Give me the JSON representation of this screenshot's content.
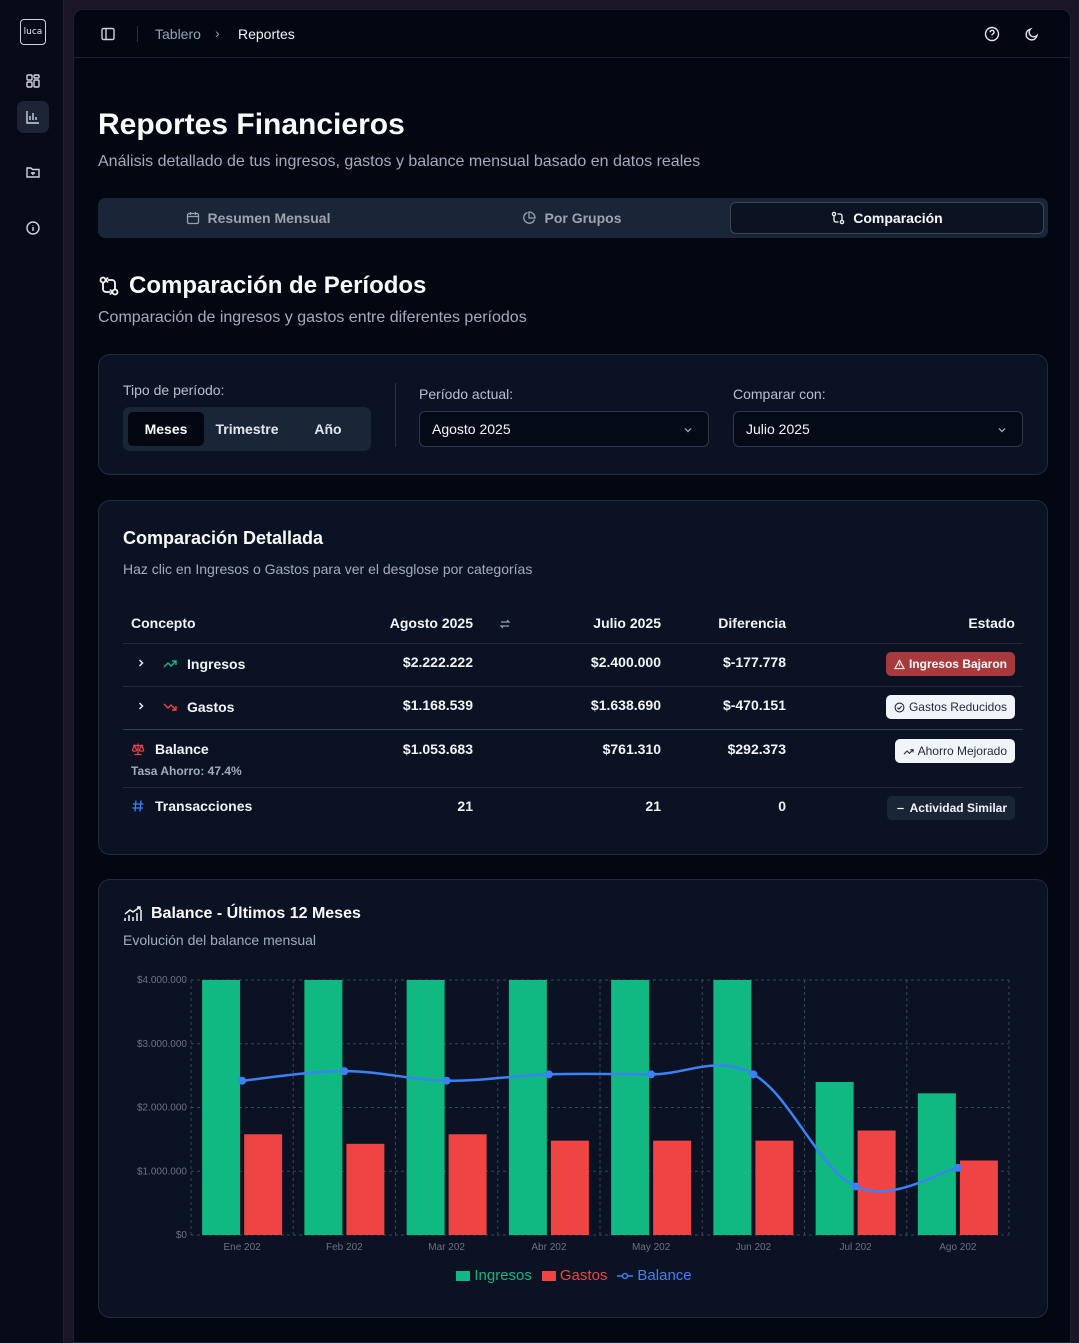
{
  "sidebar": {
    "logo": "luca",
    "items": [
      {
        "icon": "dashboard-icon"
      },
      {
        "icon": "bar-chart-icon",
        "active": true
      },
      {
        "icon": "folder-icon"
      },
      {
        "icon": "info-icon"
      }
    ]
  },
  "topbar": {
    "breadcrumb": [
      "Tablero",
      "Reportes"
    ],
    "separator": "›"
  },
  "page": {
    "title": "Reportes Financieros",
    "subtitle": "Análisis detallado de tus ingresos, gastos y balance mensual basado en datos reales"
  },
  "tabs": [
    {
      "label": "Resumen Mensual",
      "icon": "calendar-icon"
    },
    {
      "label": "Por Grupos",
      "icon": "pie-chart-icon"
    },
    {
      "label": "Comparación",
      "icon": "git-compare-icon",
      "selected": true
    }
  ],
  "section": {
    "title": "Comparación de Períodos",
    "subtitle": "Comparación de ingresos y gastos entre diferentes períodos"
  },
  "filters": {
    "period_type_label": "Tipo de período:",
    "period_options": [
      "Meses",
      "Trimestre",
      "Año"
    ],
    "period_selected": "Meses",
    "current_label": "Período actual:",
    "current_value": "Agosto 2025",
    "compare_label": "Comparar con:",
    "compare_value": "Julio 2025"
  },
  "comparison": {
    "title": "Comparación Detallada",
    "subtitle": "Haz clic en Ingresos o Gastos para ver el desglose por categorías",
    "headers": {
      "concept": "Concepto",
      "current": "Agosto 2025",
      "previous": "Julio 2025",
      "diff": "Diferencia",
      "status": "Estado"
    },
    "rows": [
      {
        "concept": "Ingresos",
        "current": "$2.222.222",
        "previous": "$2.400.000",
        "diff": "$-177.778",
        "status": "Ingresos Bajaron"
      },
      {
        "concept": "Gastos",
        "current": "$1.168.539",
        "previous": "$1.638.690",
        "diff": "$-470.151",
        "status": "Gastos Reducidos"
      },
      {
        "concept": "Balance",
        "note": "Tasa Ahorro: 47.4%",
        "current": "$1.053.683",
        "previous": "$761.310",
        "diff": "$292.373",
        "status": "Ahorro Mejorado"
      },
      {
        "concept": "Transacciones",
        "current": "21",
        "previous": "21",
        "diff": "0",
        "status": "Actividad Similar"
      }
    ]
  },
  "chart_card": {
    "title": "Balance - Últimos 12 Meses",
    "subtitle": "Evolución del balance mensual"
  },
  "colors": {
    "ingresos": "#10b981",
    "gastos": "#ef4444",
    "balance": "#3b82f6",
    "danger_badge": "#a83a3d"
  },
  "chart_data": {
    "type": "bar",
    "categories": [
      "Ene 202",
      "Feb 202",
      "Mar 202",
      "Abr 202",
      "May 202",
      "Jun 202",
      "Jul 202",
      "Ago 202"
    ],
    "series": [
      {
        "name": "Ingresos",
        "type": "bar",
        "values": [
          4000000,
          4000000,
          4000000,
          4000000,
          4000000,
          4000000,
          2400000,
          2222222
        ]
      },
      {
        "name": "Gastos",
        "type": "bar",
        "values": [
          1580000,
          1430000,
          1580000,
          1480000,
          1480000,
          1480000,
          1638690,
          1168539
        ]
      },
      {
        "name": "Balance",
        "type": "line",
        "values": [
          2420000,
          2570000,
          2420000,
          2520000,
          2520000,
          2520000,
          761310,
          1053683
        ]
      }
    ],
    "yticks": [
      "$4.000.000",
      "$3.000.000",
      "$2.000.000",
      "$1.000.000",
      "$0"
    ],
    "ylim": [
      0,
      4000000
    ],
    "grid": true,
    "legend": "bottom"
  }
}
